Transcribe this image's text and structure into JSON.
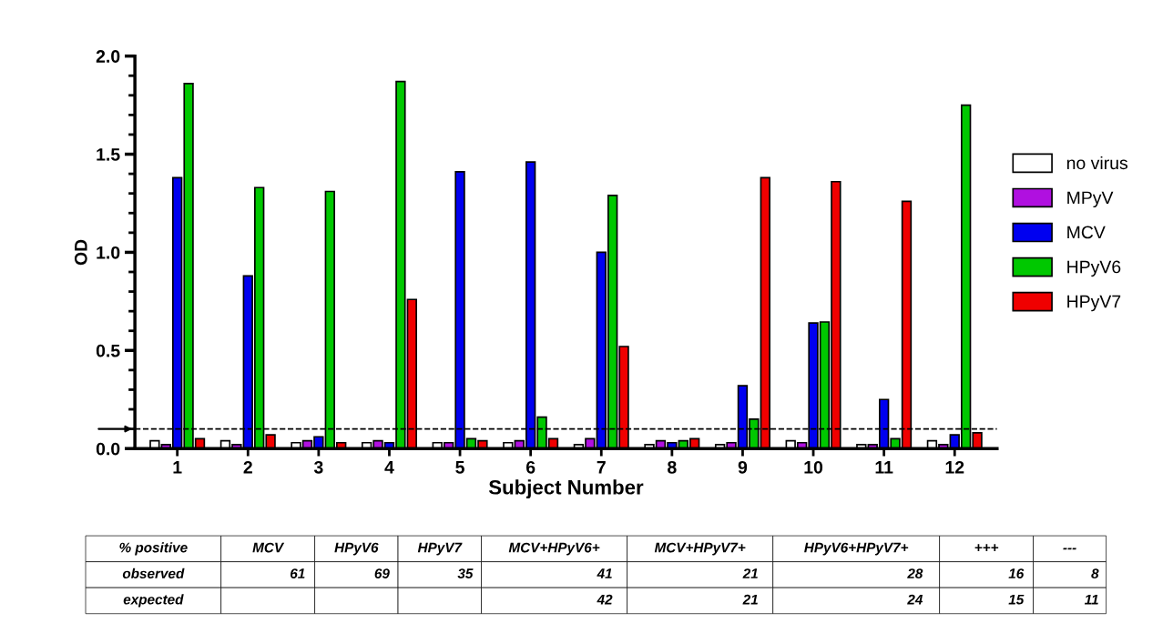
{
  "chart_data": {
    "type": "bar",
    "xlabel": "Subject Number",
    "ylabel": "OD",
    "categories": [
      "1",
      "2",
      "3",
      "4",
      "5",
      "6",
      "7",
      "8",
      "9",
      "10",
      "11",
      "12"
    ],
    "series": [
      {
        "name": "no virus",
        "color": "#ffffff",
        "values": [
          0.04,
          0.04,
          0.03,
          0.03,
          0.03,
          0.03,
          0.02,
          0.02,
          0.02,
          0.04,
          0.02,
          0.04
        ]
      },
      {
        "name": "MPyV",
        "color": "#b010e0",
        "values": [
          0.02,
          0.02,
          0.04,
          0.04,
          0.03,
          0.04,
          0.05,
          0.04,
          0.03,
          0.03,
          0.02,
          0.02
        ]
      },
      {
        "name": "MCV",
        "color": "#0000f0",
        "values": [
          1.38,
          0.88,
          0.06,
          0.03,
          1.41,
          1.46,
          1.0,
          0.03,
          0.32,
          0.64,
          0.25,
          0.07
        ]
      },
      {
        "name": "HPyV6",
        "color": "#00c800",
        "values": [
          1.86,
          1.33,
          1.31,
          1.87,
          0.05,
          0.16,
          1.29,
          0.04,
          0.15,
          0.645,
          0.05,
          1.75
        ]
      },
      {
        "name": "HPyV7",
        "color": "#f00000",
        "values": [
          0.05,
          0.07,
          0.03,
          0.76,
          0.04,
          0.05,
          0.52,
          0.05,
          1.38,
          1.36,
          1.26,
          0.08
        ]
      }
    ],
    "ylim": [
      0,
      2.0
    ],
    "yticks": [
      {
        "value": 0,
        "label": "0.0"
      },
      0.5,
      {
        "value": 1,
        "label": "1.0"
      },
      1.5,
      {
        "value": 2,
        "label": "2.0"
      }
    ],
    "ref_lines": [
      {
        "axis": "y",
        "value": 0.1,
        "line_style": "dashed",
        "color": "#000000"
      }
    ],
    "legend": "right",
    "grid": false,
    "annotations": [
      "% positive",
      "MCV",
      "HPyV6",
      "HPyV7",
      "MCV+HPyV6+",
      "MCV+HPyV7+",
      "HPyV6+HPyV7+",
      "+++",
      "---",
      "observed",
      "61",
      "69",
      "35",
      "41",
      "21",
      "28",
      "16",
      "8",
      "expected",
      "42",
      "21",
      "24",
      "15",
      "11"
    ]
  }
}
